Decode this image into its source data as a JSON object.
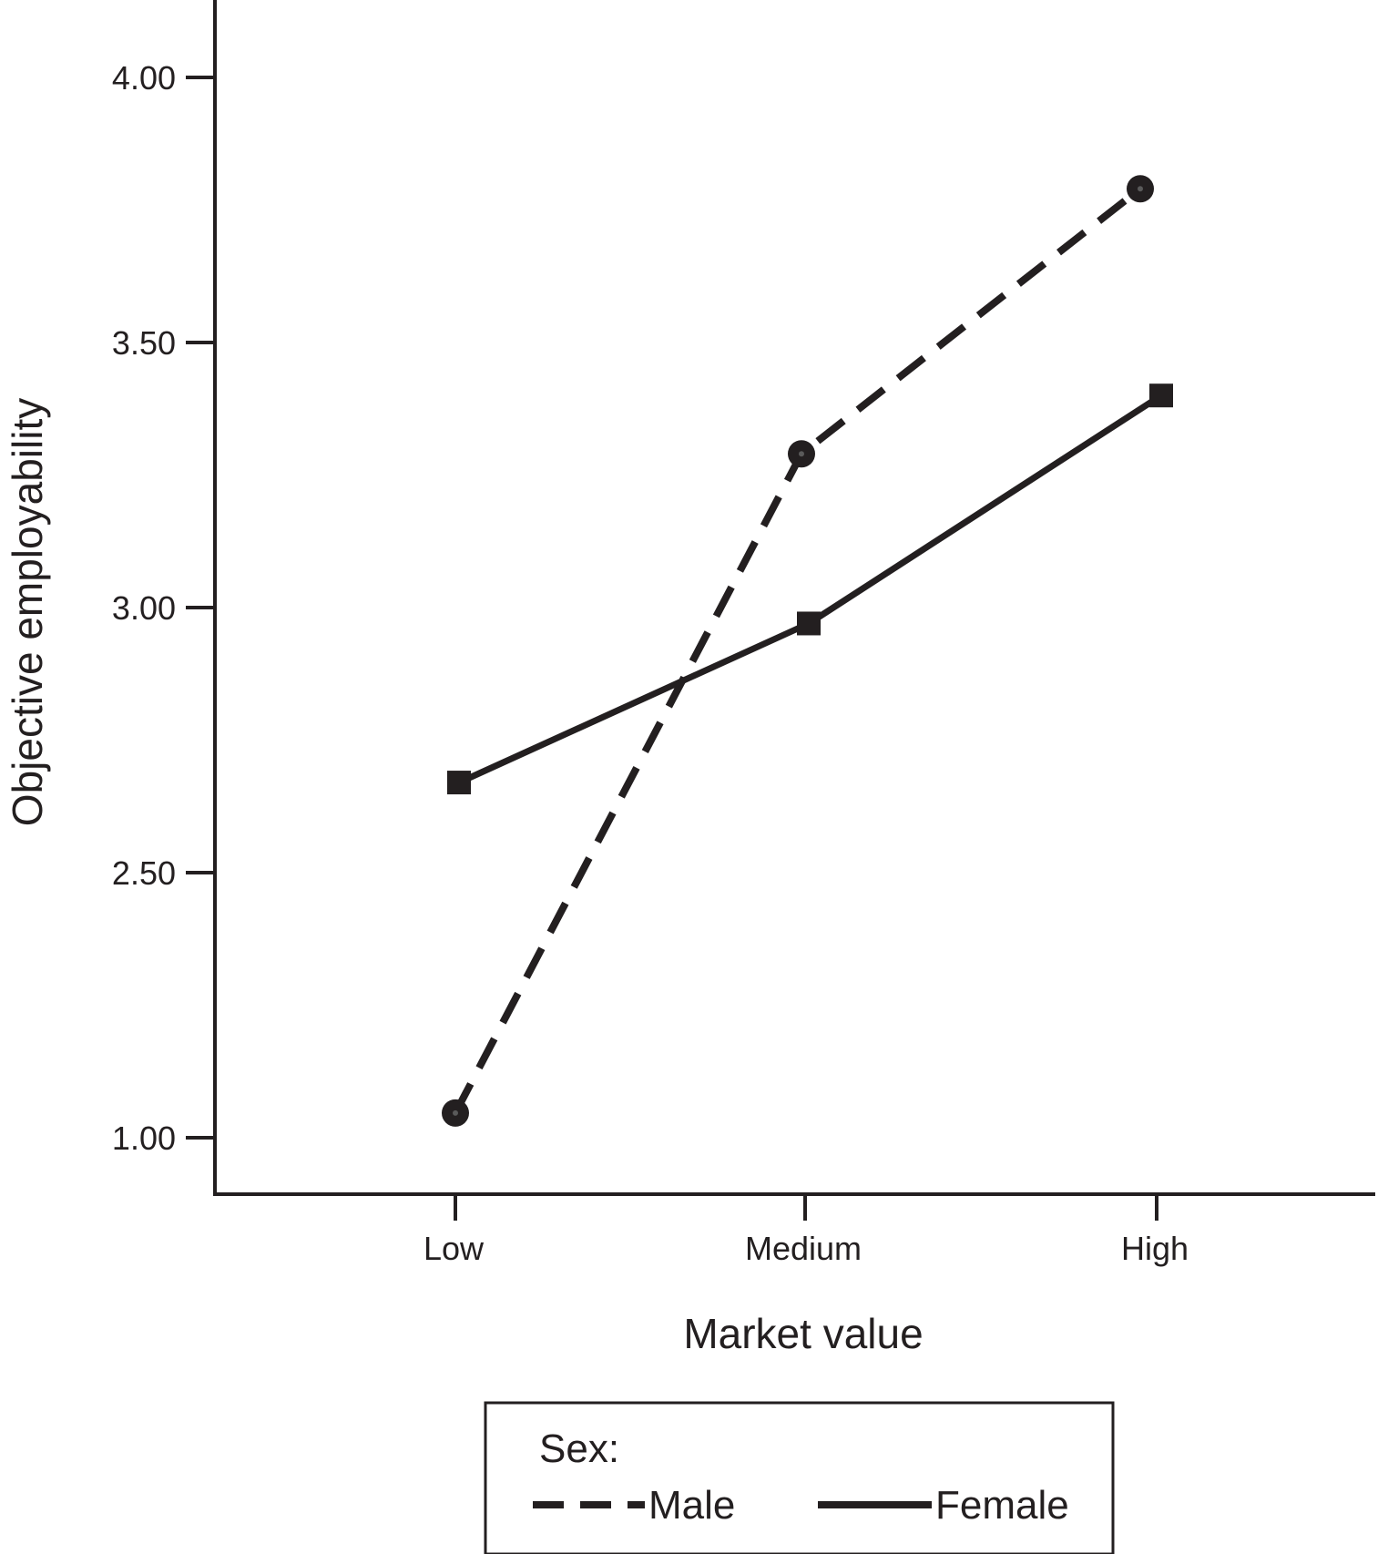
{
  "chart_data": {
    "type": "line",
    "categories": [
      "Low",
      "Medium",
      "High"
    ],
    "xlabel": "Market value",
    "ylabel": "Objective employability",
    "yticks": [
      "1.00",
      "2.50",
      "3.00",
      "3.50",
      "4.00"
    ],
    "series": [
      {
        "name": "Male",
        "style": "dashed",
        "marker": "circle",
        "values": [
          1.14,
          3.29,
          3.79
        ]
      },
      {
        "name": "Female",
        "style": "solid",
        "marker": "square",
        "values": [
          2.67,
          2.97,
          3.4
        ]
      }
    ],
    "legend": {
      "title": "Sex:",
      "placement": "bottom-center"
    },
    "grid": false,
    "colors": {
      "ink": "#231f20",
      "background": "#ffffff"
    }
  }
}
